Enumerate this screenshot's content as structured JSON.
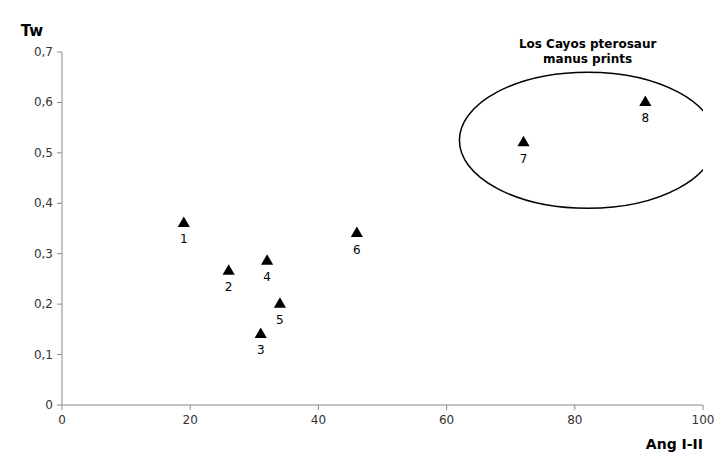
{
  "chart_data": {
    "type": "scatter",
    "x_label": "Ang I-II",
    "y_label": "Tw",
    "x": [
      19,
      26,
      31,
      32,
      34,
      46,
      72,
      91
    ],
    "values": [
      0.36,
      0.265,
      0.14,
      0.285,
      0.2,
      0.34,
      0.52,
      0.6
    ],
    "labels": [
      "1",
      "2",
      "3",
      "4",
      "5",
      "6",
      "7",
      "8"
    ],
    "color": "black",
    "marker": "triangle",
    "xlim": [
      0,
      100
    ],
    "ylim": [
      0,
      0.7
    ],
    "xticks": [
      0,
      20,
      40,
      60,
      80,
      100
    ],
    "yticks": [
      0,
      {
        "value": 0.1,
        "label": "0,1"
      },
      {
        "value": 0.2,
        "label": "0,2"
      },
      {
        "value": 0.3,
        "label": "0,3"
      },
      {
        "value": 0.4,
        "label": "0,4"
      },
      {
        "value": 0.5,
        "label": "0,5"
      },
      {
        "value": 0.6,
        "label": "0,6"
      },
      {
        "value": 0.7,
        "label": "0,7"
      }
    ],
    "grid": false,
    "annotations": [
      {
        "type": "ellipse",
        "cx": 82,
        "cy": 0.525,
        "width": 40,
        "height": 0.27,
        "text": "Los Cayos pterosaur\nmanus prints",
        "text_x": 82,
        "text_y": 0.67
      }
    ]
  }
}
